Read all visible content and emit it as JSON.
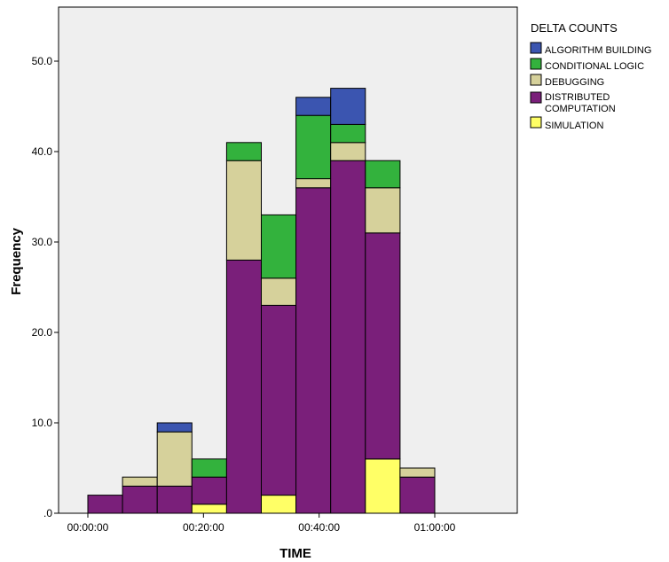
{
  "chart_data": {
    "type": "bar",
    "stacked": true,
    "title": "",
    "xlabel": "TIME",
    "ylabel": "Frequency",
    "ylim": [
      0,
      55
    ],
    "y_ticks": [
      ".0",
      "10.0",
      "20.0",
      "30.0",
      "40.0",
      "50.0"
    ],
    "x_ticks": [
      "00:00:00",
      "00:20:00",
      "00:40:00",
      "01:00:00"
    ],
    "bins_start_minutes": [
      0,
      6,
      12,
      18,
      24,
      30,
      36,
      42,
      48,
      54
    ],
    "bin_width_minutes": 6,
    "grid": false,
    "legend": {
      "title": "DELTA COUNTS",
      "placement": "right"
    },
    "series": [
      {
        "name": "SIMULATION",
        "color": "#ffff66",
        "values": [
          0,
          0,
          0,
          1,
          0,
          2,
          0,
          0,
          6,
          0
        ]
      },
      {
        "name": "DISTRIBUTED COMPUTATION",
        "color": "#7a1f7a",
        "values": [
          2,
          3,
          3,
          3,
          28,
          21,
          36,
          39,
          25,
          4
        ]
      },
      {
        "name": "DEBUGGING",
        "color": "#d6d19b",
        "values": [
          0,
          1,
          6,
          0,
          11,
          3,
          1,
          2,
          5,
          1
        ]
      },
      {
        "name": "CONDITIONAL LOGIC",
        "color": "#33b23d",
        "values": [
          0,
          0,
          0,
          2,
          2,
          7,
          7,
          2,
          3,
          0
        ]
      },
      {
        "name": "ALGORITHM BUILDING",
        "color": "#3b55b0",
        "values": [
          0,
          0,
          1,
          0,
          0,
          0,
          2,
          4,
          0,
          0
        ]
      }
    ],
    "legend_entries": [
      [
        "ALGORITHM BUILDING"
      ],
      [
        "CONDITIONAL LOGIC"
      ],
      [
        "DEBUGGING"
      ],
      [
        "DISTRIBUTED",
        "COMPUTATION"
      ],
      [
        "SIMULATION"
      ]
    ],
    "legend_colors": [
      "#3b55b0",
      "#33b23d",
      "#d6d19b",
      "#7a1f7a",
      "#ffff66"
    ],
    "plot_background": "#efefef"
  }
}
